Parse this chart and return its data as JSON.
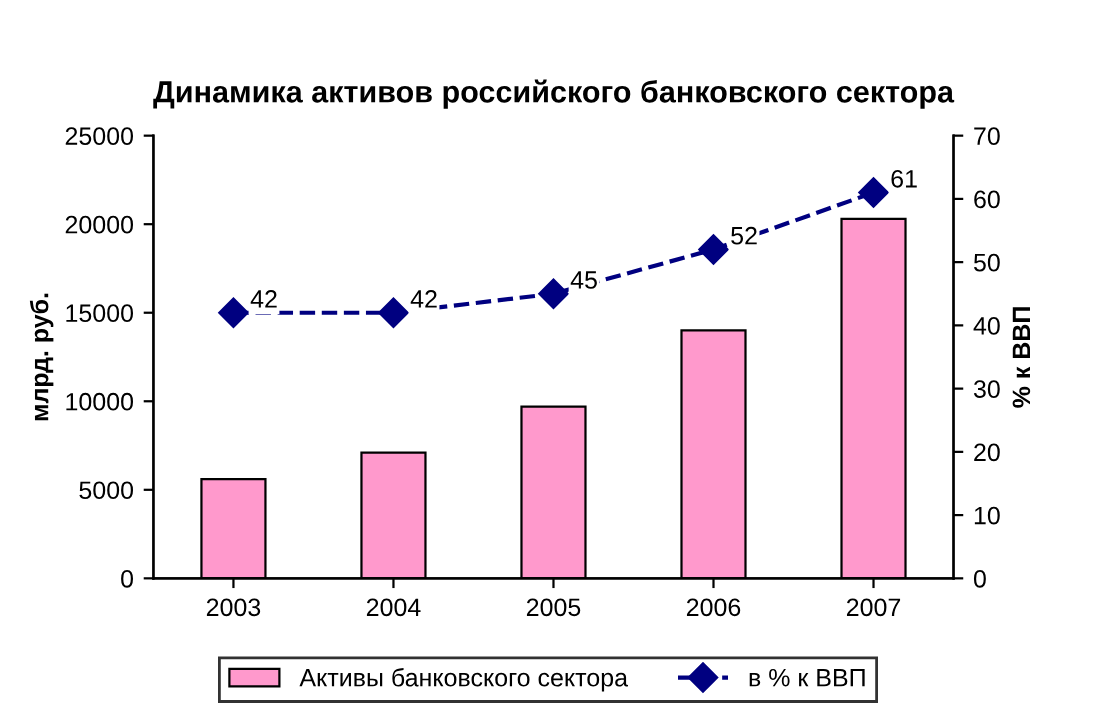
{
  "chart_data": {
    "type": "bar",
    "title": "Динамика активов российского банковского сектора",
    "ylabel": "млрд. руб.",
    "y2label": "% к ВВП",
    "categories": [
      "2003",
      "2004",
      "2005",
      "2006",
      "2007"
    ],
    "series": [
      {
        "name": "Активы банковского сектора",
        "color": "#ff99cc",
        "values": [
          5600,
          7100,
          9700,
          14000,
          20300
        ]
      },
      {
        "name": "в % к ВВП",
        "type": "line",
        "axis": "y2",
        "color": "#000080",
        "values": [
          42,
          42,
          45,
          52,
          61
        ],
        "value_labels": [
          "42",
          "42",
          "45",
          "52",
          "61"
        ],
        "marker": "diamond",
        "line_style": "dashed"
      }
    ],
    "ylim": [
      0,
      25000
    ],
    "yticks": [
      0,
      5000,
      10000,
      15000,
      20000,
      25000
    ],
    "y2lim": [
      0,
      70
    ],
    "y2ticks": [
      0,
      10,
      20,
      30,
      40,
      50,
      60,
      70
    ],
    "grid": false,
    "legend": "bottom"
  }
}
